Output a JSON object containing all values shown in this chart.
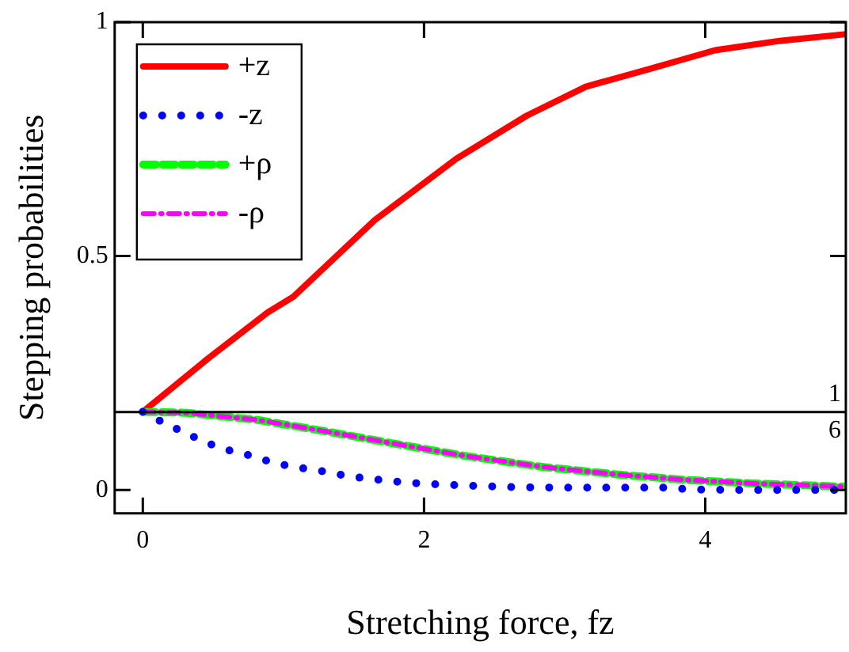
{
  "chart_data": {
    "type": "line",
    "xlabel": "Stretching force, fz",
    "ylabel": "Stepping probabilities",
    "xlim": [
      -0.2,
      5
    ],
    "xticks": [
      0,
      2,
      4
    ],
    "ylim": [
      -0.05,
      1
    ],
    "yticks": [
      0,
      0.5,
      1
    ],
    "grid": false,
    "legend": "top left",
    "ref_lines": [
      {
        "axis": "y",
        "value": 0.1667,
        "color": "#000000",
        "line_style": "solid"
      }
    ],
    "annotations": [
      "1",
      "6"
    ],
    "series": [
      {
        "name": "+z",
        "color": "#ff0000",
        "line_style": "solid",
        "x": [
          0,
          0.46,
          0.89,
          1.07,
          1.65,
          2.23,
          2.73,
          3.15,
          3.58,
          4.07,
          4.53,
          4.99
        ],
        "values": [
          0.167,
          0.28,
          0.38,
          0.413,
          0.577,
          0.708,
          0.8,
          0.862,
          0.898,
          0.94,
          0.96,
          0.974
        ]
      },
      {
        "name": "-z",
        "color": "#0000ff",
        "line_style": "dotted",
        "x": [
          0,
          0.14,
          0.3,
          0.46,
          0.61,
          0.77,
          0.93,
          1.08,
          1.24,
          1.4,
          1.55,
          1.71,
          1.87,
          2.02,
          2.34,
          2.65,
          2.96,
          3.43,
          3.74,
          3.9,
          4.21,
          4.53,
          4.84,
          4.99
        ],
        "values": [
          0.167,
          0.145,
          0.122,
          0.1,
          0.085,
          0.073,
          0.058,
          0.049,
          0.042,
          0.033,
          0.026,
          0.021,
          0.016,
          0.013,
          0.009,
          0.006,
          0.005,
          0.005,
          0.005,
          0.001,
          0,
          0,
          0,
          0
        ]
      },
      {
        "name": "+ρ",
        "color": "#00ff00",
        "line_style": "dashed",
        "x": [
          0,
          0.31,
          0.81,
          1.27,
          1.77,
          2.31,
          2.85,
          3.38,
          3.84,
          4.34,
          4.99
        ],
        "values": [
          0.167,
          0.165,
          0.15,
          0.127,
          0.1,
          0.072,
          0.049,
          0.033,
          0.022,
          0.014,
          0.007
        ]
      },
      {
        "name": "-ρ",
        "color": "#ff00ff",
        "line_style": "dashed",
        "x": [
          0,
          0.31,
          0.81,
          1.27,
          1.77,
          2.31,
          2.85,
          3.38,
          3.84,
          4.34,
          4.99
        ],
        "values": [
          0.167,
          0.165,
          0.15,
          0.127,
          0.1,
          0.072,
          0.049,
          0.033,
          0.022,
          0.014,
          0.007
        ]
      }
    ]
  }
}
